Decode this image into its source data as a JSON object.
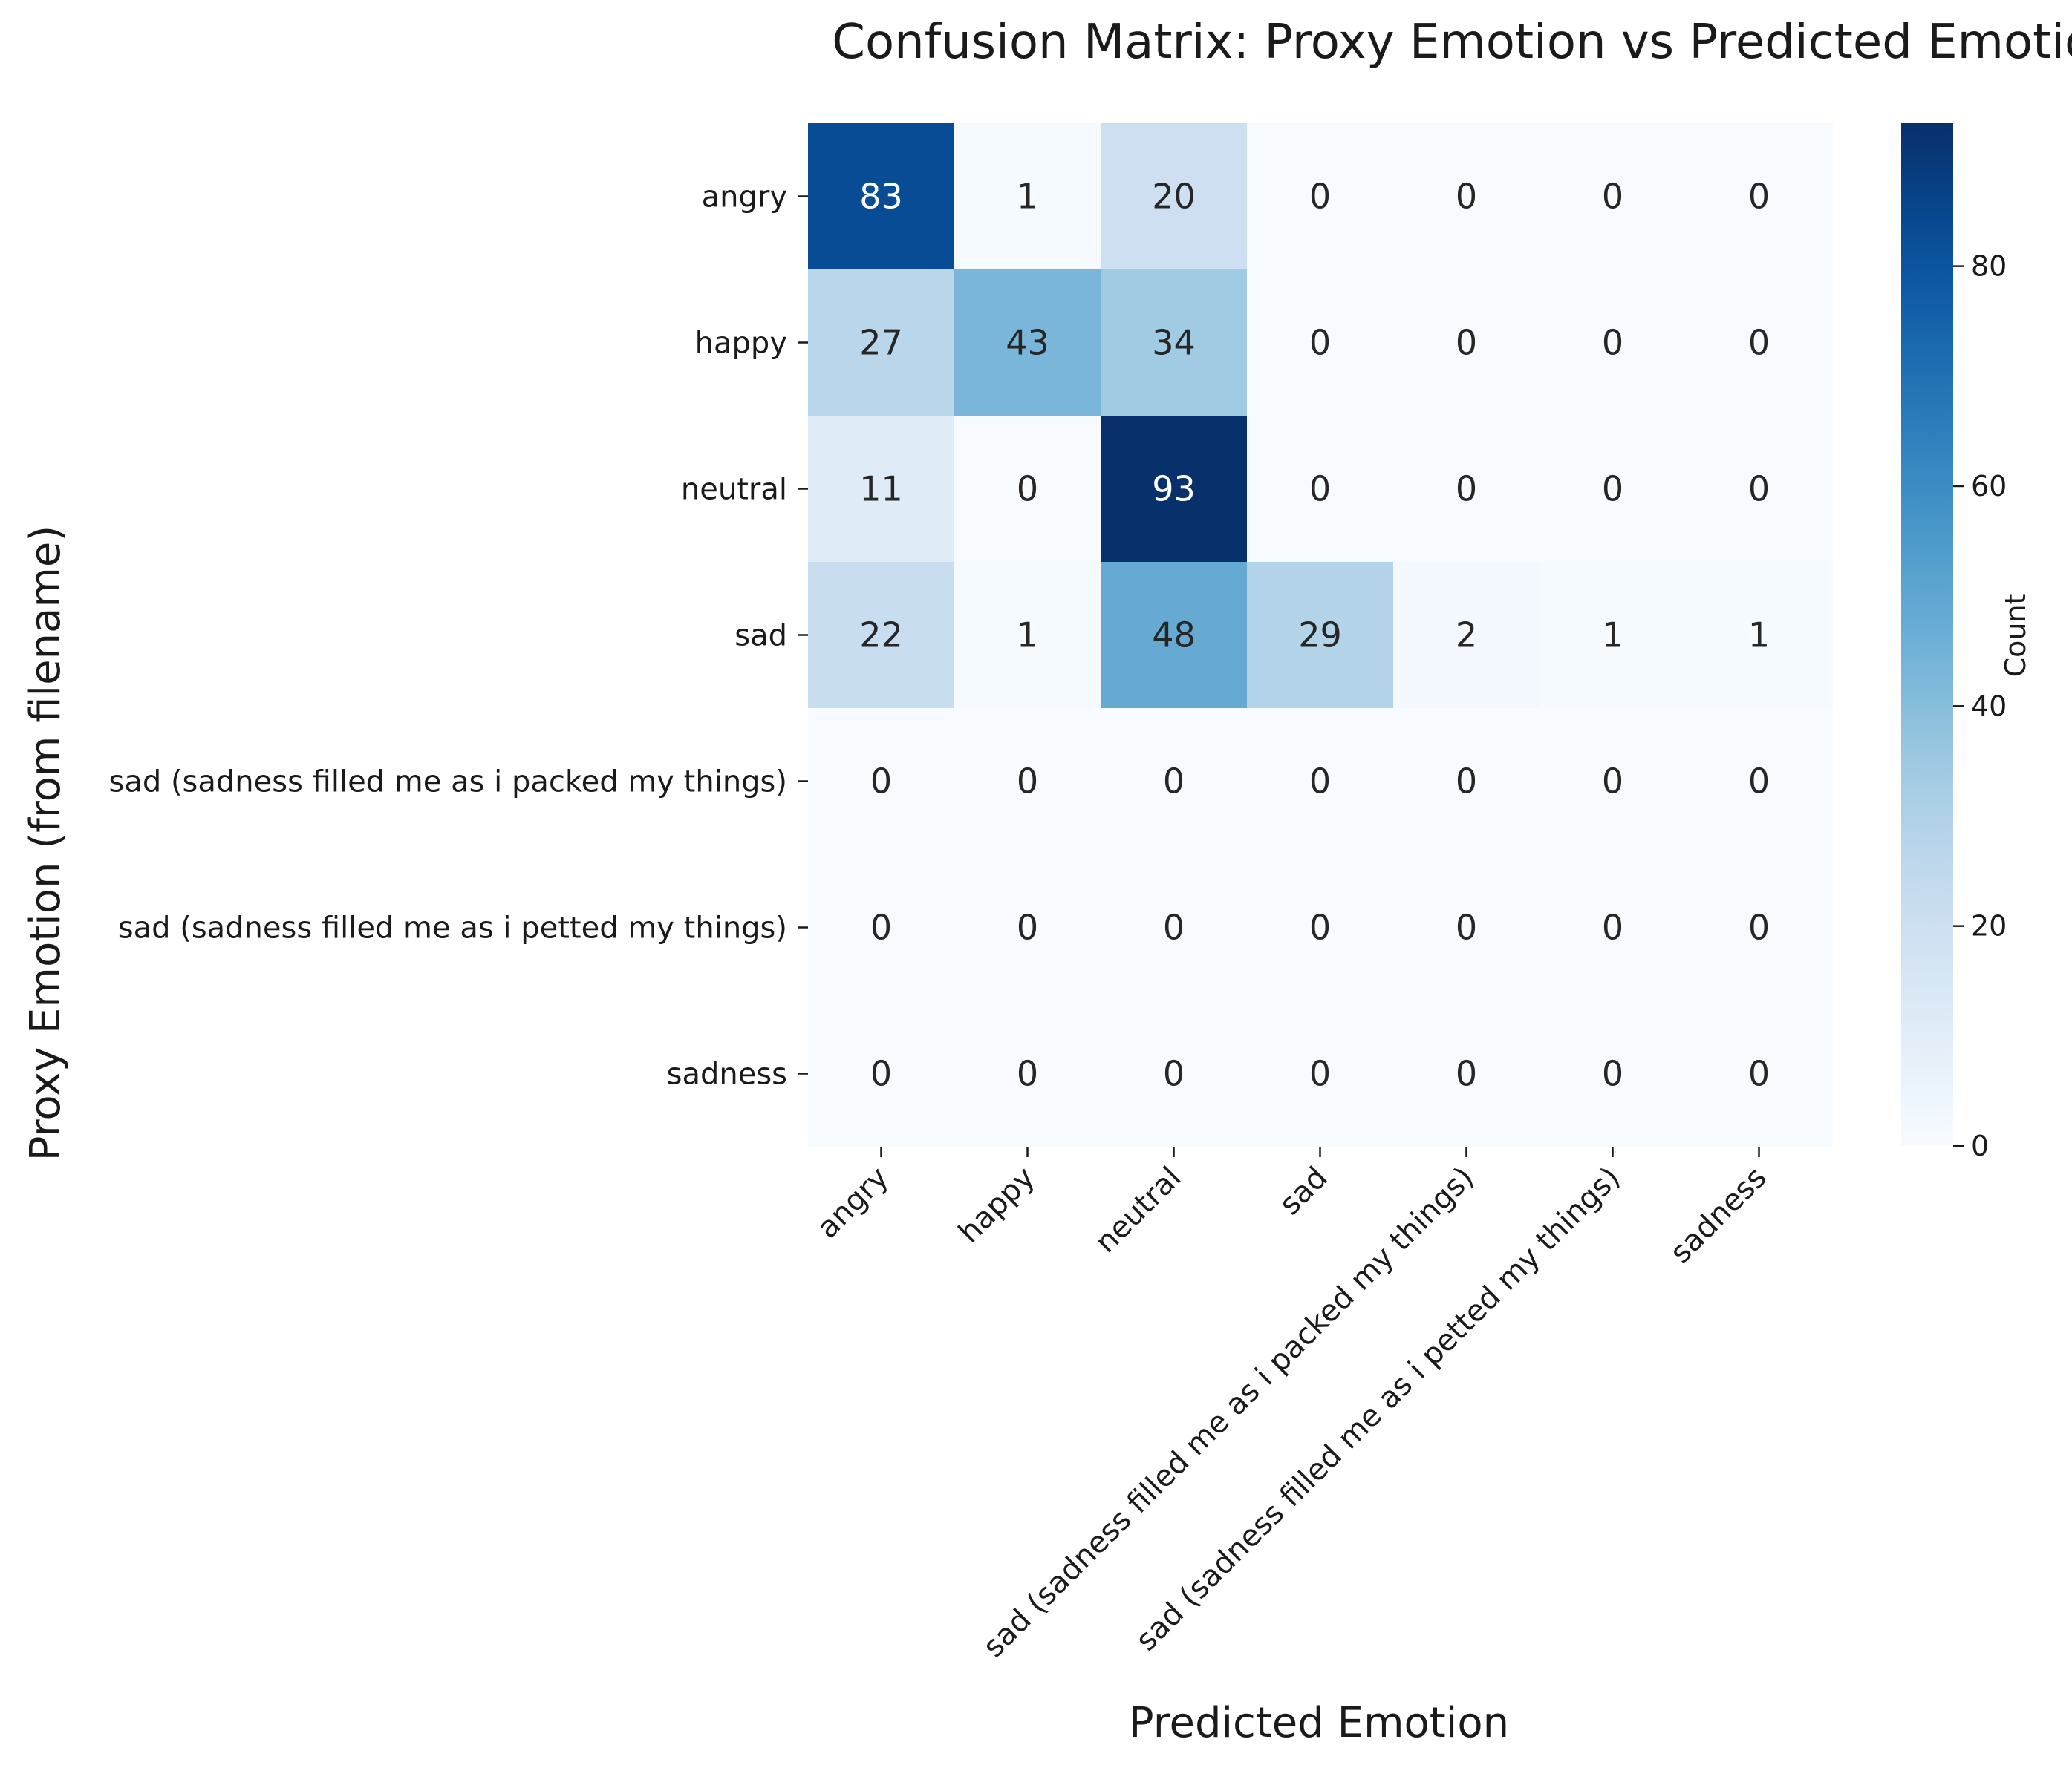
{
  "chart_data": {
    "type": "heatmap",
    "title": "Confusion Matrix: Proxy Emotion vs Predicted Emotion",
    "xlabel": "Predicted Emotion",
    "ylabel": "Proxy Emotion (from filename)",
    "row_labels": [
      "angry",
      "happy",
      "neutral",
      "sad",
      "sad (sadness filled me as i packed my things)",
      "sad (sadness filled me as i petted my things)",
      "sadness"
    ],
    "col_labels": [
      "angry",
      "happy",
      "neutral",
      "sad",
      "sad (sadness filled me as i packed my things)",
      "sad (sadness filled me as i petted my things)",
      "sadness"
    ],
    "values": [
      [
        83,
        1,
        20,
        0,
        0,
        0,
        0
      ],
      [
        27,
        43,
        34,
        0,
        0,
        0,
        0
      ],
      [
        11,
        0,
        93,
        0,
        0,
        0,
        0
      ],
      [
        22,
        1,
        48,
        29,
        2,
        1,
        1
      ],
      [
        0,
        0,
        0,
        0,
        0,
        0,
        0
      ],
      [
        0,
        0,
        0,
        0,
        0,
        0,
        0
      ],
      [
        0,
        0,
        0,
        0,
        0,
        0,
        0
      ]
    ],
    "colorbar": {
      "label": "Count",
      "colormap": "Blues",
      "range": [
        0,
        93
      ],
      "ticks": [
        0,
        20,
        40,
        60,
        80
      ]
    }
  }
}
